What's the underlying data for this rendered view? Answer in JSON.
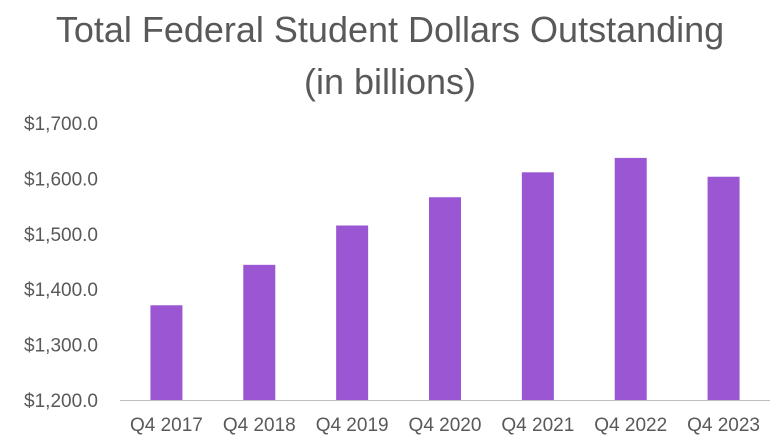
{
  "chart_data": {
    "type": "bar",
    "title": "Total Federal Student Dollars Outstanding",
    "subtitle": "(in billions)",
    "xlabel": "",
    "ylabel": "",
    "categories": [
      "Q4 2017",
      "Q4 2018",
      "Q4 2019",
      "Q4 2020",
      "Q4 2021",
      "Q4 2022",
      "Q4 2023"
    ],
    "values": [
      1371,
      1444,
      1515,
      1566,
      1611,
      1637,
      1603
    ],
    "ylim": [
      1200,
      1700
    ],
    "yticks": [
      1200,
      1300,
      1400,
      1500,
      1600,
      1700
    ],
    "ytick_labels": [
      "$1,200.0",
      "$1,300.0",
      "$1,400.0",
      "$1,500.0",
      "$1,600.0",
      "$1,700.0"
    ],
    "grid": false,
    "legend": "none",
    "colors": {
      "bar": "#9b57d3",
      "text": "#595959",
      "axis": "#bfbfbf"
    }
  }
}
